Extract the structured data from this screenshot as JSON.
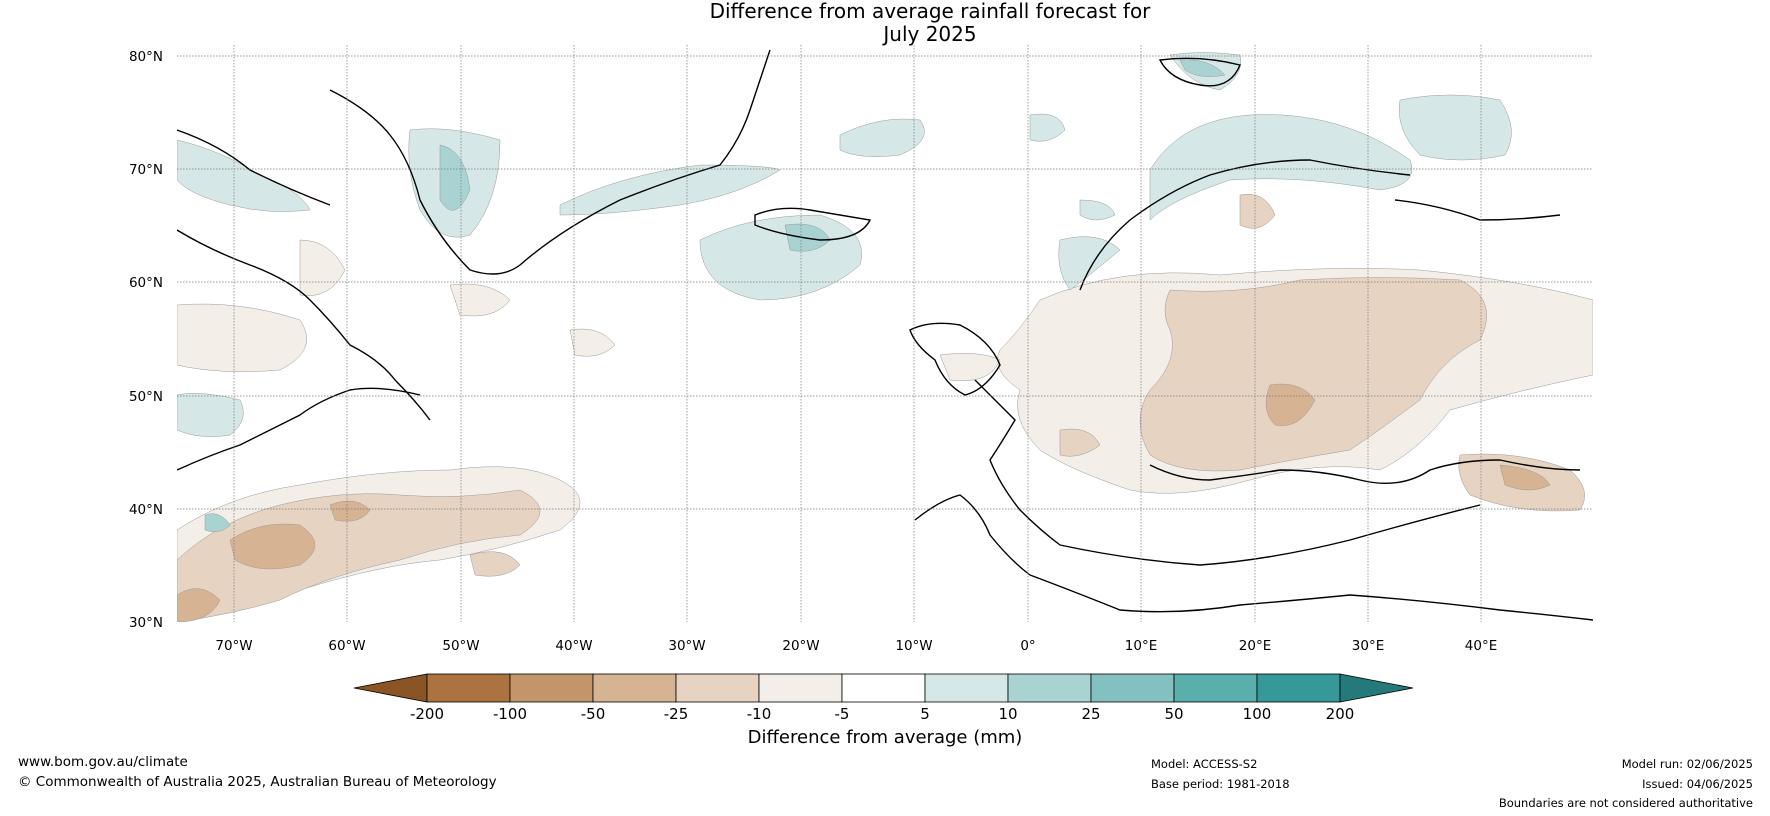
{
  "title_line1": "Difference from average rainfall forecast for",
  "title_line2": "July 2025",
  "lat_ticks": [
    "80°N",
    "70°N",
    "60°N",
    "50°N",
    "40°N",
    "30°N"
  ],
  "lon_ticks": [
    "70°W",
    "60°W",
    "50°W",
    "40°W",
    "30°W",
    "20°W",
    "10°W",
    "0°",
    "10°E",
    "20°E",
    "30°E",
    "40°E"
  ],
  "colorbar": {
    "title": "Difference from average (mm)",
    "bounds": [
      "-200",
      "-100",
      "-50",
      "-25",
      "-10",
      "-5",
      "5",
      "10",
      "25",
      "50",
      "100",
      "200"
    ],
    "colors": [
      "#8a5424",
      "#ac7340",
      "#c4946a",
      "#d6b393",
      "#e6d3c1",
      "#f3eee7",
      "#ffffff",
      "#d5e8e7",
      "#a9d3d2",
      "#82c1bf",
      "#5aaeab",
      "#35999a",
      "#24797a"
    ]
  },
  "footer": {
    "website": "www.bom.gov.au/climate",
    "copyright": "© Commonwealth of Australia 2025, Australian Bureau of Meteorology",
    "model": "Model: ACCESS-S2",
    "base_period": "Base period: 1981-2018",
    "model_run": "Model run: 02/06/2025",
    "issued": "Issued: 04/06/2025",
    "disclaimer": "Boundaries are not considered authoritative"
  }
}
